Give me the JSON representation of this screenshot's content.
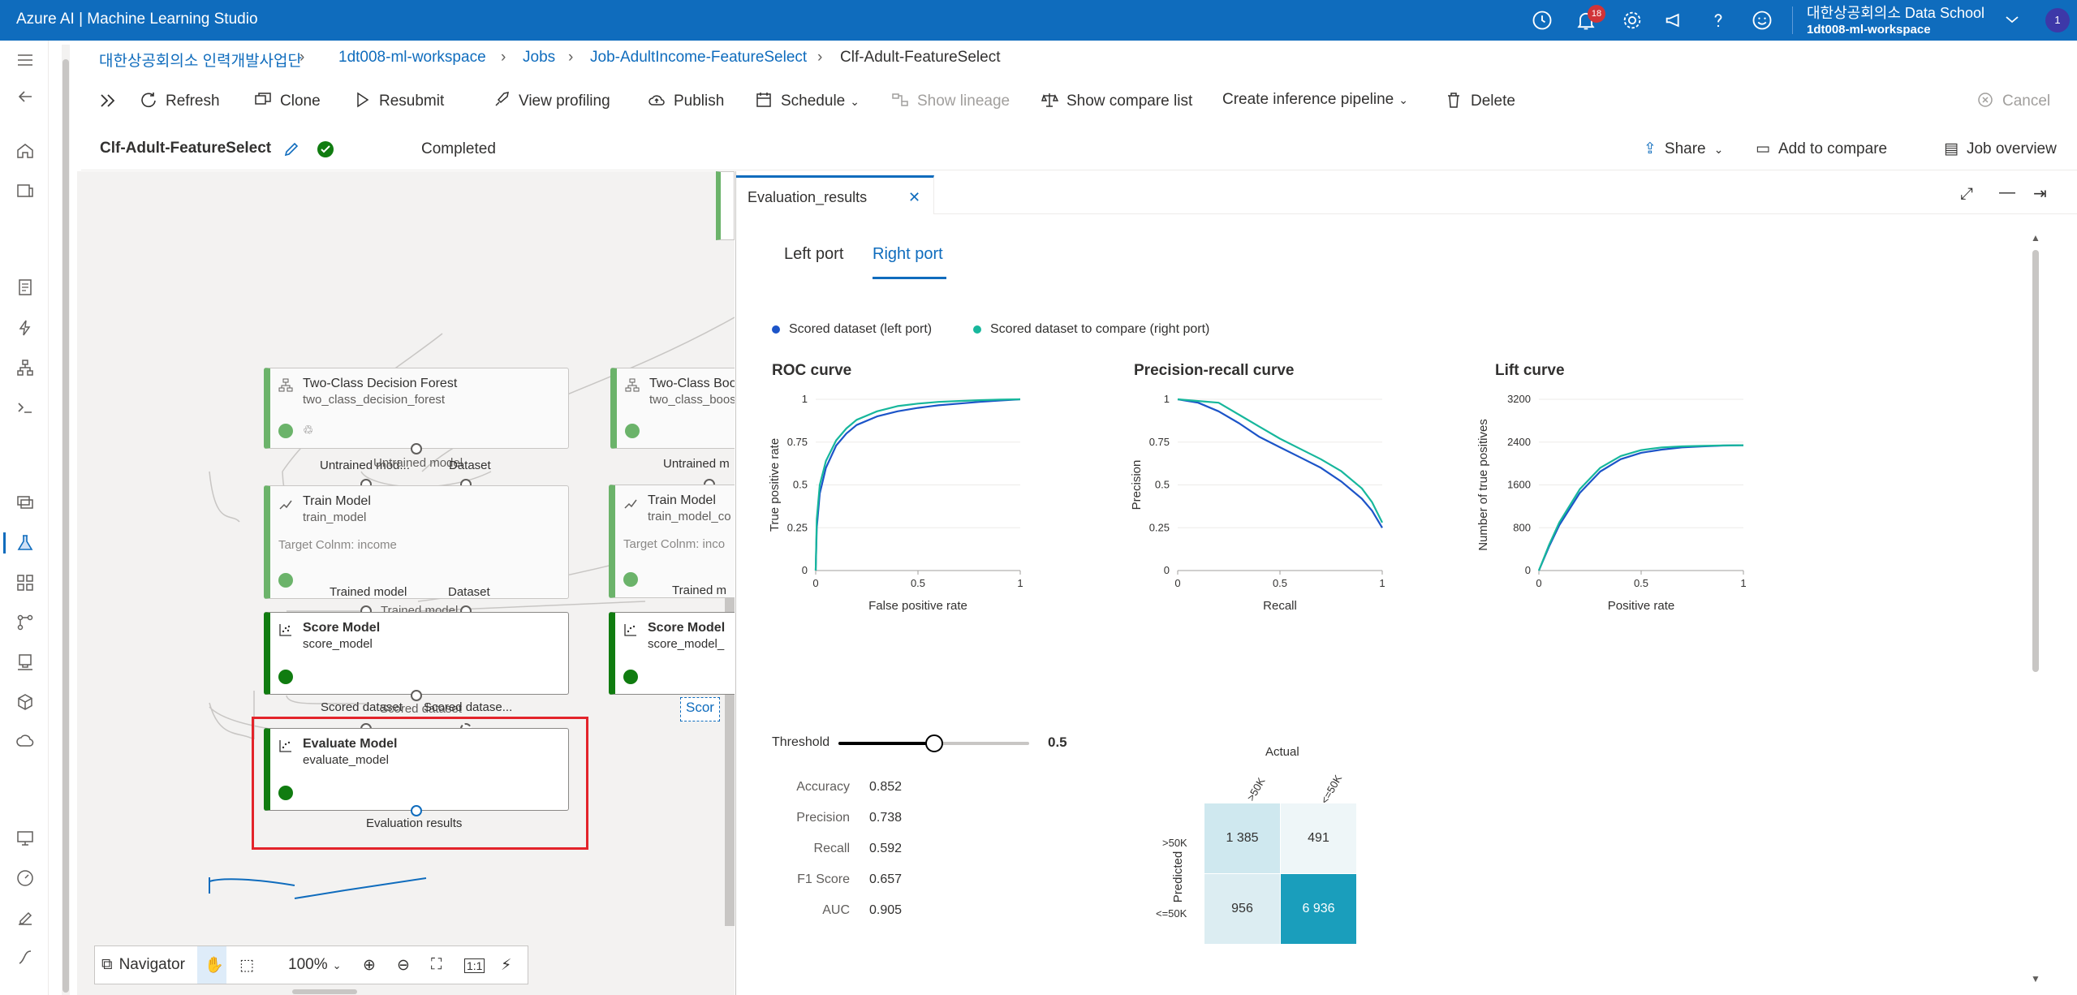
{
  "app": {
    "title": "Azure AI | Machine Learning Studio",
    "notification_count": "18",
    "account_org": "대한상공회의소 Data School",
    "account_workspace": "1dt008-ml-workspace",
    "avatar_initial": "1"
  },
  "breadcrumb": {
    "items": [
      "대한상공회의소 인력개발사업단",
      "1dt008-ml-workspace",
      "Jobs",
      "Job-AdultIncome-FeatureSelect",
      "Clf-Adult-FeatureSelect"
    ]
  },
  "toolbar": {
    "refresh": "Refresh",
    "clone": "Clone",
    "resubmit": "Resubmit",
    "view_profiling": "View profiling",
    "publish": "Publish",
    "schedule": "Schedule",
    "show_lineage": "Show lineage",
    "show_compare_list": "Show compare list",
    "create_inference_pipeline": "Create inference pipeline",
    "delete": "Delete",
    "cancel": "Cancel"
  },
  "job": {
    "name": "Clf-Adult-FeatureSelect",
    "status": "Completed",
    "share": "Share",
    "add_to_compare": "Add to compare",
    "job_overview": "Job overview"
  },
  "canvas": {
    "nodes": {
      "decision_forest": {
        "title": "Two-Class Decision Forest",
        "sub": "two_class_decision_forest"
      },
      "boosted": {
        "title": "Two-Class Boo",
        "sub": "two_class_boos"
      },
      "train1": {
        "title": "Train Model",
        "sub": "train_model",
        "target": "Target Colnm: income"
      },
      "train2": {
        "title": "Train Model",
        "sub": "train_model_co",
        "target": "Target Colnm: inco"
      },
      "score1": {
        "title": "Score Model",
        "sub": "score_model"
      },
      "score2": {
        "title": "Score Model",
        "sub": "score_model_"
      },
      "evaluate": {
        "title": "Evaluate Model",
        "sub": "evaluate_model"
      }
    },
    "labels": {
      "untrained_model": "Untrained mod...",
      "untrained_model_overlay": "Untrained model",
      "dataset": "Dataset",
      "untrained_model2": "Untrained m",
      "trained_model": "Trained model",
      "trained_model_overlay": "Trained model",
      "trained_model2": "Trained m",
      "scored_dataset": "Scored dataset",
      "scored_dataset_overlay": "Scored dataset",
      "scored_dataset_compare": "Scored datase...",
      "scored_partial": "Scor",
      "evaluation_results": "Evaluation results"
    },
    "navigator": {
      "label": "Navigator",
      "zoom": "100%"
    }
  },
  "eval_panel": {
    "tab_title": "Evaluation_results",
    "subtabs": [
      "Left port",
      "Right port"
    ],
    "active_subtab": "Right port",
    "legend": [
      "Scored dataset (left port)",
      "Scored dataset to compare (right port)"
    ],
    "colors": {
      "left": "#1c54c8",
      "right": "#17b79c"
    },
    "threshold": {
      "label": "Threshold",
      "value": "0.5",
      "fraction": 0.5
    },
    "metrics": [
      {
        "label": "Accuracy",
        "value": "0.852"
      },
      {
        "label": "Precision",
        "value": "0.738"
      },
      {
        "label": "Recall",
        "value": "0.592"
      },
      {
        "label": "F1 Score",
        "value": "0.657"
      },
      {
        "label": "AUC",
        "value": "0.905"
      }
    ],
    "confusion_matrix": {
      "actual_label": "Actual",
      "predicted_label": "Predicted",
      "col_labels": [
        ">50K",
        "<=50K"
      ],
      "row_labels": [
        ">50K",
        "<=50K"
      ],
      "cells": [
        [
          "1 385",
          "491"
        ],
        [
          "956",
          "6 936"
        ]
      ]
    }
  },
  "chart_data": [
    {
      "type": "line",
      "title": "ROC curve",
      "xlabel": "False positive rate",
      "ylabel": "True positive rate",
      "xlim": [
        0,
        1
      ],
      "ylim": [
        0,
        1
      ],
      "xticks": [
        "0",
        "0.5",
        "1"
      ],
      "yticks": [
        "0",
        "0.25",
        "0.5",
        "0.75",
        "1"
      ],
      "series": [
        {
          "name": "Scored dataset (left port)",
          "x": [
            0,
            0.005,
            0.02,
            0.05,
            0.1,
            0.15,
            0.2,
            0.3,
            0.4,
            0.5,
            0.6,
            0.7,
            0.8,
            0.9,
            1
          ],
          "y": [
            0,
            0.25,
            0.45,
            0.6,
            0.73,
            0.8,
            0.85,
            0.9,
            0.93,
            0.95,
            0.965,
            0.975,
            0.985,
            0.993,
            1
          ]
        },
        {
          "name": "Scored dataset to compare (right port)",
          "x": [
            0,
            0.005,
            0.02,
            0.05,
            0.1,
            0.15,
            0.2,
            0.3,
            0.4,
            0.5,
            0.6,
            0.7,
            0.8,
            0.9,
            1
          ],
          "y": [
            0,
            0.3,
            0.5,
            0.64,
            0.76,
            0.83,
            0.88,
            0.93,
            0.96,
            0.975,
            0.985,
            0.99,
            0.995,
            0.998,
            1
          ]
        }
      ]
    },
    {
      "type": "line",
      "title": "Precision-recall curve",
      "xlabel": "Recall",
      "ylabel": "Precision",
      "xlim": [
        0,
        1
      ],
      "ylim": [
        0,
        1
      ],
      "xticks": [
        "0",
        "0.5",
        "1"
      ],
      "yticks": [
        "0",
        "0.25",
        "0.5",
        "0.75",
        "1"
      ],
      "series": [
        {
          "name": "Scored dataset (left port)",
          "x": [
            0,
            0.1,
            0.2,
            0.3,
            0.4,
            0.5,
            0.6,
            0.7,
            0.8,
            0.9,
            0.95,
            1
          ],
          "y": [
            1,
            0.98,
            0.93,
            0.86,
            0.78,
            0.72,
            0.66,
            0.6,
            0.52,
            0.42,
            0.35,
            0.25
          ]
        },
        {
          "name": "Scored dataset to compare (right port)",
          "x": [
            0,
            0.1,
            0.2,
            0.3,
            0.4,
            0.5,
            0.6,
            0.7,
            0.8,
            0.9,
            0.95,
            1
          ],
          "y": [
            1,
            0.99,
            0.98,
            0.91,
            0.84,
            0.77,
            0.71,
            0.65,
            0.58,
            0.48,
            0.4,
            0.28
          ]
        }
      ]
    },
    {
      "type": "line",
      "title": "Lift curve",
      "xlabel": "Positive rate",
      "ylabel": "Number of true positives",
      "xlim": [
        0,
        1
      ],
      "ylim": [
        0,
        3200
      ],
      "xticks": [
        "0",
        "0.5",
        "1"
      ],
      "yticks": [
        "0",
        "800",
        "1600",
        "2400",
        "3200"
      ],
      "series": [
        {
          "name": "Scored dataset (left port)",
          "x": [
            0,
            0.05,
            0.1,
            0.2,
            0.3,
            0.4,
            0.5,
            0.6,
            0.7,
            0.8,
            0.9,
            1
          ],
          "y": [
            0,
            450,
            850,
            1450,
            1850,
            2080,
            2200,
            2260,
            2300,
            2320,
            2335,
            2341
          ]
        },
        {
          "name": "Scored dataset to compare (right port)",
          "x": [
            0,
            0.05,
            0.1,
            0.2,
            0.3,
            0.4,
            0.5,
            0.6,
            0.7,
            0.8,
            0.9,
            1
          ],
          "y": [
            0,
            480,
            900,
            1520,
            1920,
            2140,
            2250,
            2300,
            2320,
            2330,
            2338,
            2341
          ]
        }
      ]
    }
  ]
}
